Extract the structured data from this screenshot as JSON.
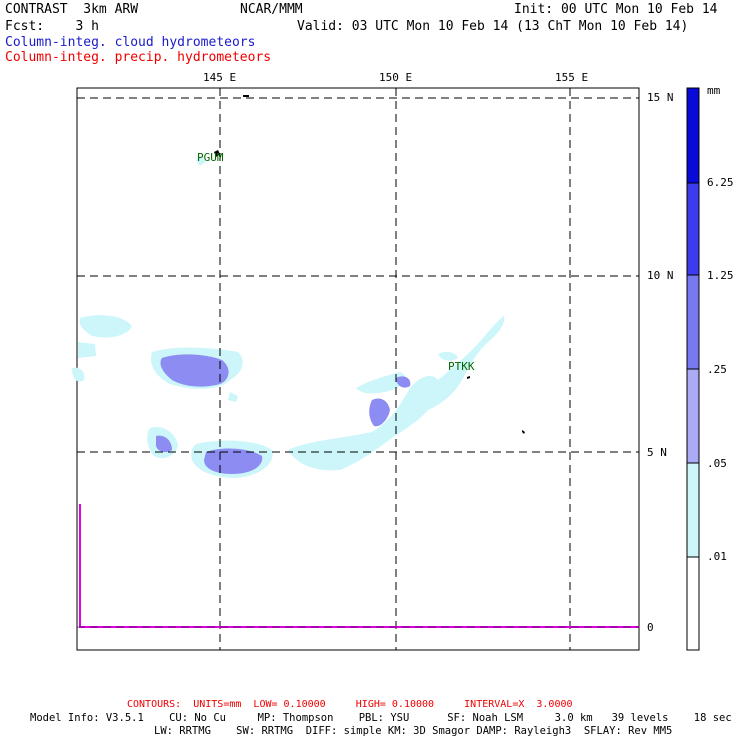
{
  "header": {
    "title_left": "CONTRAST  3km ARW",
    "center": "NCAR/MMM",
    "init": "Init: 00 UTC Mon 10 Feb 14",
    "fcst": "Fcst:    3 h",
    "valid": "Valid: 03 UTC Mon 10 Feb 14 (13 ChT Mon 10 Feb 14)",
    "field_cloud": "Column-integ. cloud hydrometeors",
    "field_precip": "Column-integ. precip. hydrometeors"
  },
  "map": {
    "lon_labels": [
      "145 E",
      "150 E",
      "155 E"
    ],
    "lat_labels": [
      "15 N",
      "10 N",
      "5 N",
      "0"
    ],
    "stations": [
      "PGUM",
      "PTKK"
    ]
  },
  "colorbar": {
    "unit": "mm",
    "labels": [
      "6.25",
      "1.25",
      ".25",
      ".05",
      ".01"
    ],
    "colors": [
      "#0a0ad8",
      "#3c3cee",
      "#7878f0",
      "#aaaaf6",
      "#ccf6fa",
      "#ffffff"
    ]
  },
  "footer": {
    "contours": "CONTOURS:  UNITS=mm  LOW= 0.10000     HIGH= 0.10000     INTERVAL=X  3.0000",
    "model_line1": "Model Info: V3.5.1    CU: No Cu     MP: Thompson    PBL: YSU      SF: Noah LSM     3.0 km   39 levels    18 sec",
    "model_line2": "LW: RRTMG    SW: RRTMG  DIFF: simple KM: 3D Smagor DAMP: Rayleigh3  SFLAY: Rev MM5"
  }
}
